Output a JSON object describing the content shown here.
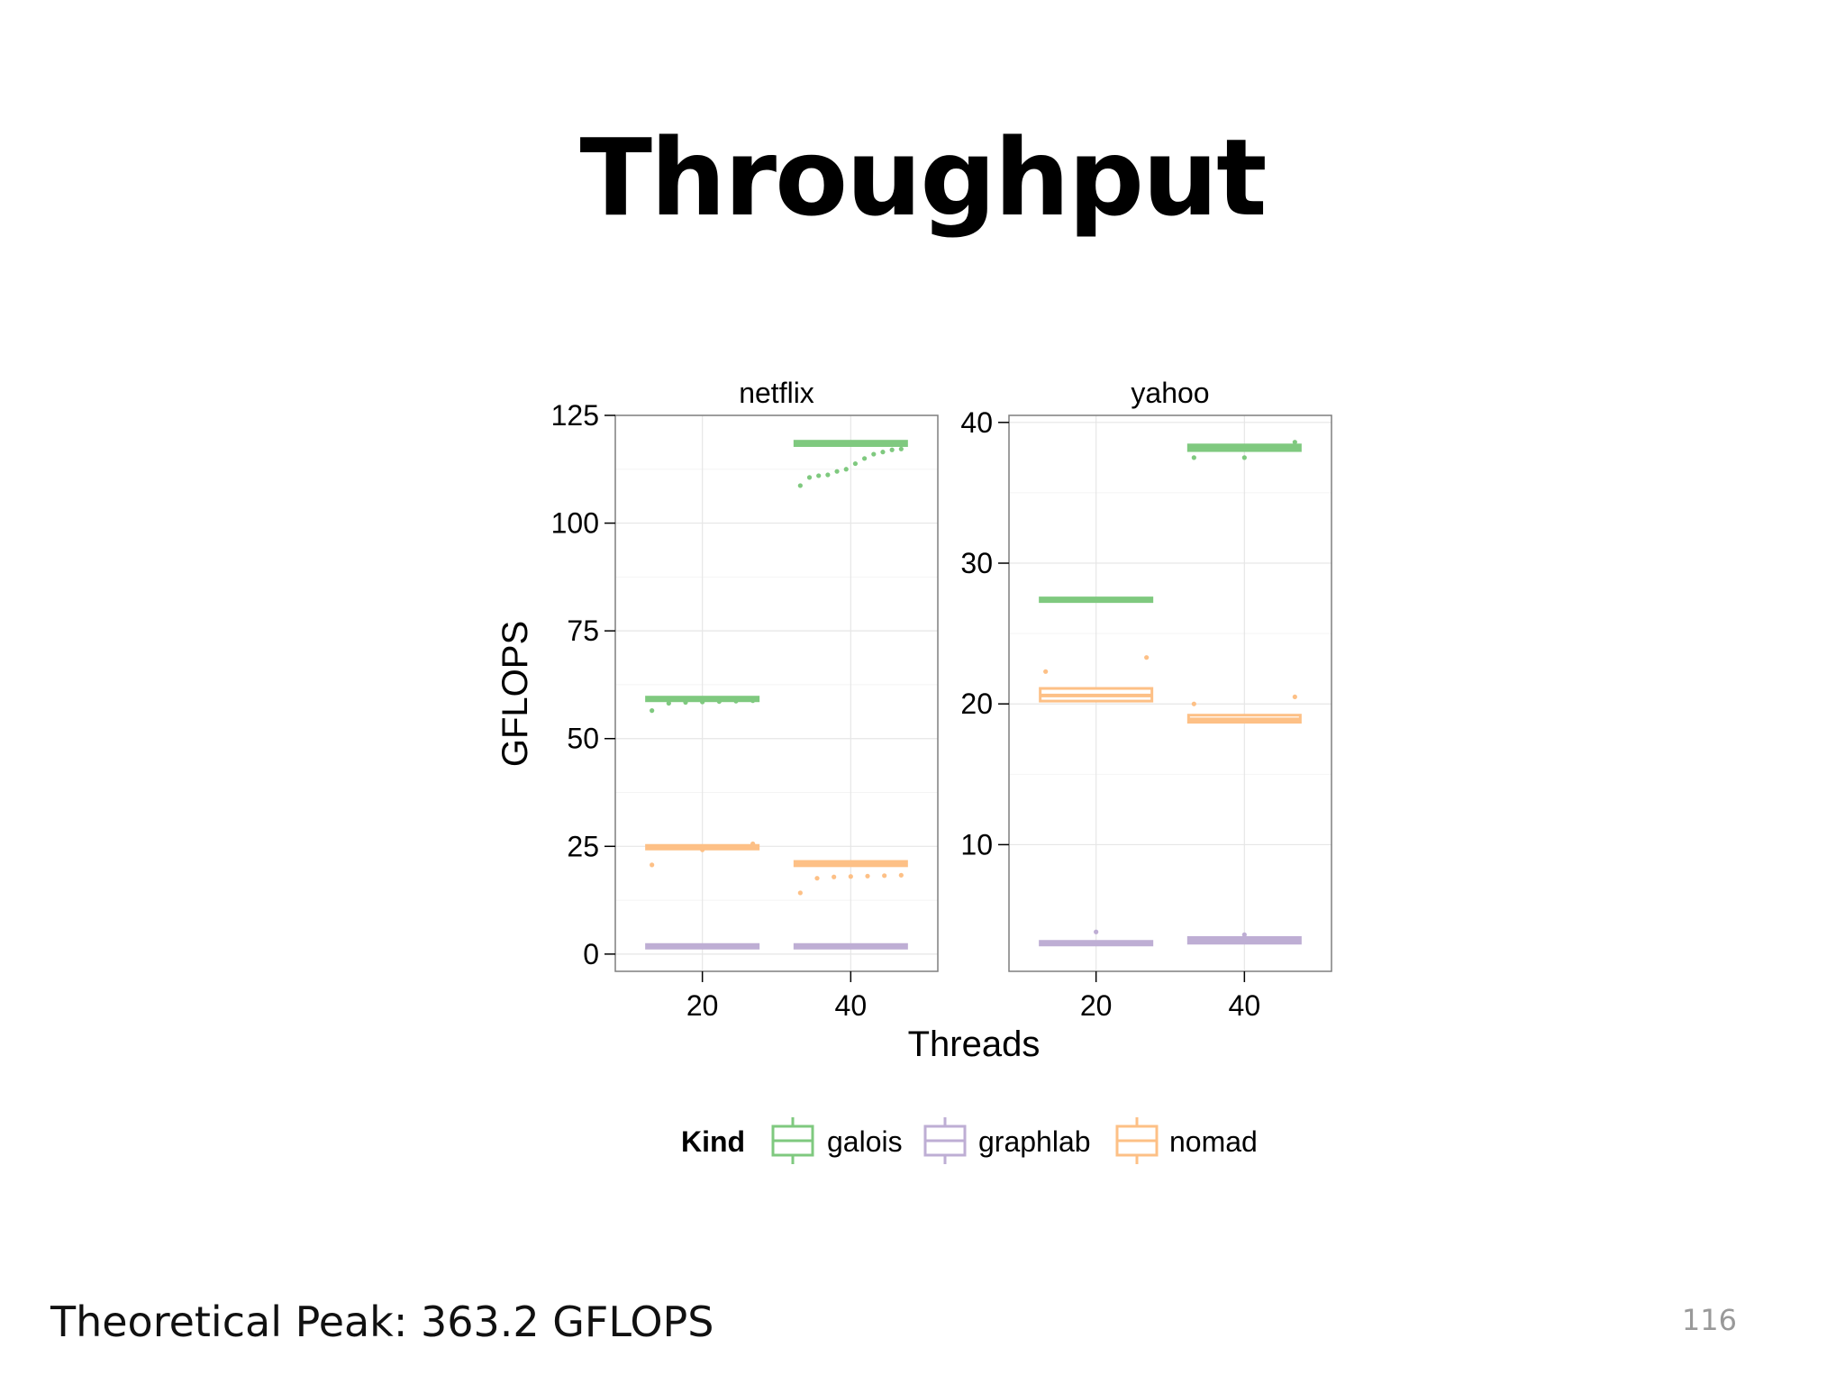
{
  "slide": {
    "title": "Throughput",
    "footer": "Theoretical Peak: 363.2 GFLOPS",
    "page_number": "116"
  },
  "chart_data": {
    "type": "boxplot",
    "xlabel": "Threads",
    "ylabel": "GFLOPS",
    "x_categories": [
      "20",
      "40"
    ],
    "legend": {
      "title": "Kind",
      "placement": "bottom",
      "entries": [
        {
          "name": "galois",
          "color": "#7fc97f"
        },
        {
          "name": "graphlab",
          "color": "#beaed4"
        },
        {
          "name": "nomad",
          "color": "#fdc086"
        }
      ]
    },
    "grid": true,
    "panels": [
      {
        "name": "netflix",
        "ylim": [
          -4,
          125
        ],
        "yticks": [
          0,
          25,
          50,
          75,
          100,
          125
        ],
        "series": [
          {
            "kind": "galois",
            "color": "#7fc97f",
            "boxes": [
              {
                "x": "20",
                "median": 59.2,
                "q1": 58.8,
                "q3": 59.6,
                "outliers": [
                  56.5,
                  58.2,
                  58.4,
                  58.5,
                  58.6,
                  58.7,
                  58.8
                ]
              },
              {
                "x": "40",
                "median": 118.5,
                "q1": 118.0,
                "q3": 119.0,
                "outliers": [
                  108.7,
                  110.6,
                  111.0,
                  111.2,
                  112.0,
                  112.5,
                  113.8,
                  115.0,
                  116.0,
                  116.5,
                  117.0,
                  117.2
                ]
              }
            ]
          },
          {
            "kind": "graphlab",
            "color": "#beaed4",
            "boxes": [
              {
                "x": "20",
                "median": 1.8,
                "q1": 1.5,
                "q3": 2.1,
                "outliers": []
              },
              {
                "x": "40",
                "median": 1.8,
                "q1": 1.5,
                "q3": 2.1,
                "outliers": []
              }
            ]
          },
          {
            "kind": "nomad",
            "color": "#fdc086",
            "boxes": [
              {
                "x": "20",
                "median": 24.8,
                "q1": 24.5,
                "q3": 25.1,
                "outliers": [
                  20.7,
                  24.2,
                  25.6
                ]
              },
              {
                "x": "40",
                "median": 21.0,
                "q1": 20.5,
                "q3": 21.5,
                "outliers": [
                  14.2,
                  17.6,
                  17.9,
                  18.0,
                  18.1,
                  18.2,
                  18.3
                ]
              }
            ]
          }
        ]
      },
      {
        "name": "yahoo",
        "ylim": [
          1,
          40.5
        ],
        "yticks": [
          10,
          20,
          30,
          40
        ],
        "series": [
          {
            "kind": "galois",
            "color": "#7fc97f",
            "boxes": [
              {
                "x": "20",
                "median": 27.4,
                "q1": 27.3,
                "q3": 27.5,
                "outliers": []
              },
              {
                "x": "40",
                "median": 38.2,
                "q1": 38.0,
                "q3": 38.4,
                "outliers": [
                  37.5,
                  37.5,
                  38.6
                ]
              }
            ]
          },
          {
            "kind": "graphlab",
            "color": "#beaed4",
            "boxes": [
              {
                "x": "20",
                "median": 3.0,
                "q1": 2.9,
                "q3": 3.1,
                "outliers": [
                  3.8
                ]
              },
              {
                "x": "40",
                "median": 3.2,
                "q1": 3.0,
                "q3": 3.4,
                "outliers": [
                  3.6
                ]
              }
            ]
          },
          {
            "kind": "nomad",
            "color": "#fdc086",
            "boxes": [
              {
                "x": "20",
                "median": 20.6,
                "q1": 20.2,
                "q3": 21.1,
                "outliers": [
                  22.3,
                  23.3
                ]
              },
              {
                "x": "40",
                "median": 18.9,
                "q1": 18.7,
                "q3": 19.2,
                "outliers": [
                  20.0,
                  20.5
                ]
              }
            ]
          }
        ]
      }
    ]
  }
}
